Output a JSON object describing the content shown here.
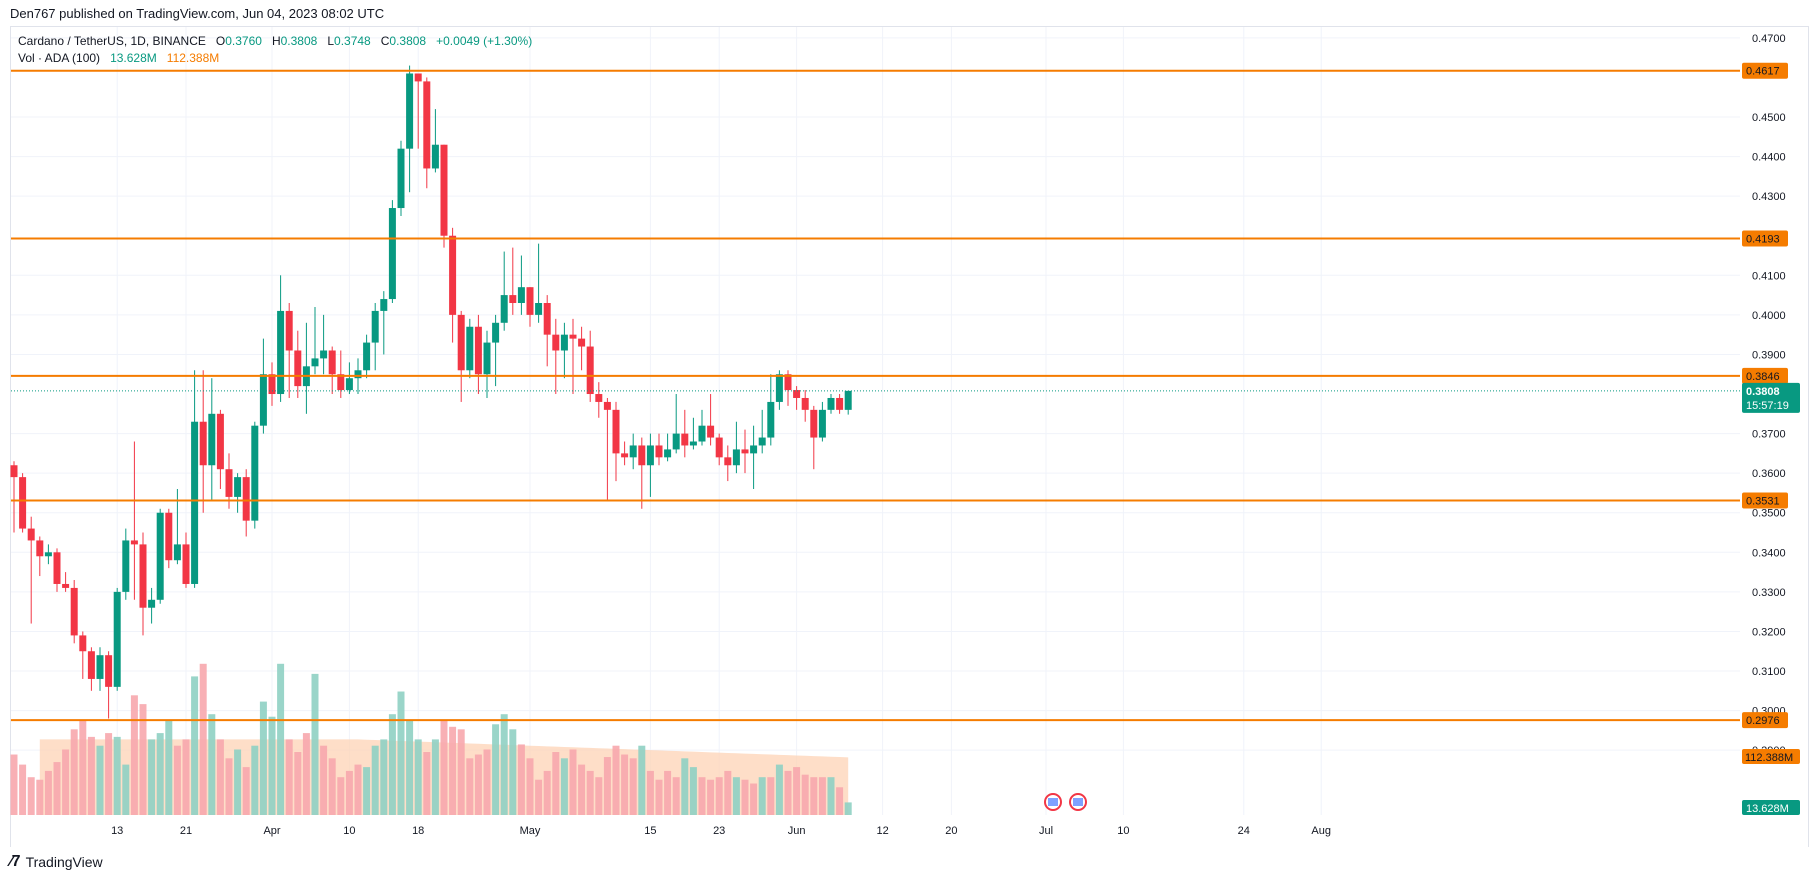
{
  "header": {
    "published": "Den767 published on TradingView.com, Jun 04, 2023 08:02 UTC"
  },
  "legend": {
    "symbol": "Cardano / TetherUS, 1D, BINANCE",
    "o_label": "O",
    "o": "0.3760",
    "h_label": "H",
    "h": "0.3808",
    "l_label": "L",
    "l": "0.3748",
    "c_label": "C",
    "c": "0.3808",
    "change": "+0.0049 (+1.30%)",
    "vol_label": "Vol · ADA (100)",
    "vol_value": "13.628M",
    "vol_ma": "112.388M"
  },
  "footer": {
    "brand": "TradingView"
  },
  "colors": {
    "up": "#089981",
    "down": "#f23645",
    "level": "#f57c00",
    "up_vol": "#8fd0c3",
    "down_vol": "#f7a7ad",
    "ma_fill": "#fdd3b5"
  },
  "chart_data": {
    "type": "candlestick",
    "price_axis": {
      "min": 0.286,
      "max": 0.473,
      "ticks": [
        "0.4700",
        "0.4500",
        "0.4400",
        "0.4300",
        "0.4100",
        "0.4000",
        "0.3900",
        "0.3700",
        "0.3600",
        "0.3500",
        "0.3400",
        "0.3300",
        "0.3200",
        "0.3100",
        "0.3000",
        "0.2900"
      ]
    },
    "time_axis": {
      "labels": [
        "13",
        "21",
        "Apr",
        "10",
        "18",
        "May",
        "15",
        "23",
        "Jun",
        "12",
        "20",
        "Jul",
        "10",
        "24",
        "Aug"
      ],
      "label_index": [
        12,
        20,
        30,
        39,
        47,
        60,
        74,
        82,
        91,
        101,
        109,
        120,
        129,
        143,
        152
      ],
      "total_slots": 160
    },
    "levels": [
      {
        "value": 0.4617,
        "label": "0.4617"
      },
      {
        "value": 0.4193,
        "label": "0.4193"
      },
      {
        "value": 0.3846,
        "label": "0.3846"
      },
      {
        "value": 0.3531,
        "label": "0.3531"
      },
      {
        "value": 0.2976,
        "label": "0.2976"
      }
    ],
    "last_price": {
      "value": 0.3808,
      "label": "0.3808",
      "countdown": "15:57:19"
    },
    "volume_ma_label": "112.388M",
    "volume_last_label": "13.628M",
    "candles": [
      [
        0.362,
        0.359,
        0.363,
        0.345
      ],
      [
        0.359,
        0.346,
        0.36,
        0.345
      ],
      [
        0.346,
        0.343,
        0.349,
        0.322
      ],
      [
        0.343,
        0.339,
        0.344,
        0.334
      ],
      [
        0.339,
        0.34,
        0.342,
        0.337
      ],
      [
        0.34,
        0.332,
        0.341,
        0.33
      ],
      [
        0.332,
        0.331,
        0.335,
        0.33
      ],
      [
        0.331,
        0.319,
        0.333,
        0.317
      ],
      [
        0.319,
        0.315,
        0.32,
        0.308
      ],
      [
        0.315,
        0.308,
        0.316,
        0.305
      ],
      [
        0.308,
        0.314,
        0.316,
        0.305
      ],
      [
        0.314,
        0.306,
        0.315,
        0.298
      ],
      [
        0.306,
        0.33,
        0.331,
        0.305
      ],
      [
        0.33,
        0.343,
        0.346,
        0.328
      ],
      [
        0.343,
        0.342,
        0.368,
        0.328
      ],
      [
        0.342,
        0.326,
        0.345,
        0.319
      ],
      [
        0.326,
        0.328,
        0.331,
        0.322
      ],
      [
        0.328,
        0.35,
        0.351,
        0.327
      ],
      [
        0.35,
        0.338,
        0.351,
        0.336
      ],
      [
        0.338,
        0.342,
        0.356,
        0.337
      ],
      [
        0.342,
        0.332,
        0.345,
        0.331
      ],
      [
        0.332,
        0.373,
        0.386,
        0.331
      ],
      [
        0.373,
        0.362,
        0.386,
        0.35
      ],
      [
        0.362,
        0.375,
        0.384,
        0.353
      ],
      [
        0.375,
        0.361,
        0.376,
        0.356
      ],
      [
        0.361,
        0.354,
        0.365,
        0.351
      ],
      [
        0.354,
        0.359,
        0.36,
        0.35
      ],
      [
        0.359,
        0.348,
        0.361,
        0.344
      ],
      [
        0.348,
        0.372,
        0.373,
        0.346
      ],
      [
        0.372,
        0.385,
        0.394,
        0.37
      ],
      [
        0.385,
        0.38,
        0.388,
        0.377
      ],
      [
        0.38,
        0.401,
        0.41,
        0.378
      ],
      [
        0.401,
        0.391,
        0.403,
        0.379
      ],
      [
        0.391,
        0.382,
        0.396,
        0.379
      ],
      [
        0.382,
        0.387,
        0.398,
        0.375
      ],
      [
        0.387,
        0.389,
        0.402,
        0.385
      ],
      [
        0.389,
        0.391,
        0.4,
        0.385
      ],
      [
        0.391,
        0.385,
        0.392,
        0.38
      ],
      [
        0.385,
        0.381,
        0.391,
        0.379
      ],
      [
        0.381,
        0.384,
        0.388,
        0.38
      ],
      [
        0.384,
        0.386,
        0.389,
        0.38
      ],
      [
        0.386,
        0.393,
        0.395,
        0.384
      ],
      [
        0.393,
        0.401,
        0.403,
        0.386
      ],
      [
        0.401,
        0.404,
        0.406,
        0.39
      ],
      [
        0.404,
        0.427,
        0.429,
        0.403
      ],
      [
        0.427,
        0.442,
        0.444,
        0.425
      ],
      [
        0.442,
        0.461,
        0.463,
        0.431
      ],
      [
        0.461,
        0.459,
        0.46,
        0.442
      ],
      [
        0.459,
        0.437,
        0.46,
        0.432
      ],
      [
        0.437,
        0.443,
        0.452,
        0.436
      ],
      [
        0.443,
        0.42,
        0.443,
        0.417
      ],
      [
        0.42,
        0.4,
        0.422,
        0.393
      ],
      [
        0.4,
        0.386,
        0.401,
        0.378
      ],
      [
        0.386,
        0.397,
        0.399,
        0.384
      ],
      [
        0.397,
        0.385,
        0.4,
        0.38
      ],
      [
        0.385,
        0.393,
        0.396,
        0.379
      ],
      [
        0.393,
        0.398,
        0.4,
        0.382
      ],
      [
        0.398,
        0.405,
        0.416,
        0.396
      ],
      [
        0.405,
        0.403,
        0.417,
        0.4
      ],
      [
        0.403,
        0.407,
        0.415,
        0.4
      ],
      [
        0.407,
        0.4,
        0.407,
        0.397
      ],
      [
        0.4,
        0.403,
        0.418,
        0.398
      ],
      [
        0.403,
        0.395,
        0.405,
        0.387
      ],
      [
        0.395,
        0.391,
        0.399,
        0.38
      ],
      [
        0.391,
        0.395,
        0.398,
        0.384
      ],
      [
        0.395,
        0.394,
        0.399,
        0.38
      ],
      [
        0.394,
        0.392,
        0.397,
        0.386
      ],
      [
        0.392,
        0.38,
        0.396,
        0.378
      ],
      [
        0.38,
        0.378,
        0.383,
        0.374
      ],
      [
        0.378,
        0.376,
        0.379,
        0.353
      ],
      [
        0.376,
        0.365,
        0.378,
        0.358
      ],
      [
        0.365,
        0.364,
        0.368,
        0.362
      ],
      [
        0.364,
        0.367,
        0.37,
        0.361
      ],
      [
        0.367,
        0.362,
        0.369,
        0.351
      ],
      [
        0.362,
        0.367,
        0.37,
        0.354
      ],
      [
        0.367,
        0.364,
        0.37,
        0.362
      ],
      [
        0.364,
        0.366,
        0.37,
        0.363
      ],
      [
        0.366,
        0.37,
        0.38,
        0.365
      ],
      [
        0.37,
        0.367,
        0.376,
        0.364
      ],
      [
        0.367,
        0.368,
        0.374,
        0.366
      ],
      [
        0.368,
        0.372,
        0.376,
        0.367
      ],
      [
        0.372,
        0.369,
        0.38,
        0.367
      ],
      [
        0.369,
        0.364,
        0.37,
        0.362
      ],
      [
        0.364,
        0.362,
        0.367,
        0.358
      ],
      [
        0.362,
        0.366,
        0.373,
        0.36
      ],
      [
        0.366,
        0.365,
        0.371,
        0.36
      ],
      [
        0.365,
        0.367,
        0.372,
        0.356
      ],
      [
        0.367,
        0.369,
        0.376,
        0.365
      ],
      [
        0.369,
        0.378,
        0.385,
        0.367
      ],
      [
        0.378,
        0.385,
        0.386,
        0.376
      ],
      [
        0.385,
        0.381,
        0.386,
        0.377
      ],
      [
        0.381,
        0.379,
        0.382,
        0.376
      ],
      [
        0.379,
        0.376,
        0.381,
        0.373
      ],
      [
        0.376,
        0.369,
        0.377,
        0.361
      ],
      [
        0.369,
        0.376,
        0.378,
        0.368
      ],
      [
        0.376,
        0.379,
        0.38,
        0.375
      ],
      [
        0.379,
        0.376,
        0.38,
        0.375
      ],
      [
        0.376,
        0.3808,
        0.3808,
        0.3748
      ]
    ],
    "volumes": [
      [
        48,
        1
      ],
      [
        40,
        1
      ],
      [
        30,
        1
      ],
      [
        28,
        1
      ],
      [
        35,
        1
      ],
      [
        42,
        1
      ],
      [
        52,
        1
      ],
      [
        68,
        1
      ],
      [
        75,
        1
      ],
      [
        62,
        1
      ],
      [
        55,
        0
      ],
      [
        65,
        1
      ],
      [
        62,
        0
      ],
      [
        40,
        0
      ],
      [
        95,
        1
      ],
      [
        88,
        1
      ],
      [
        60,
        0
      ],
      [
        65,
        0
      ],
      [
        75,
        0
      ],
      [
        55,
        1
      ],
      [
        60,
        1
      ],
      [
        110,
        0
      ],
      [
        120,
        1
      ],
      [
        80,
        0
      ],
      [
        60,
        1
      ],
      [
        45,
        1
      ],
      [
        52,
        0
      ],
      [
        38,
        1
      ],
      [
        55,
        0
      ],
      [
        90,
        0
      ],
      [
        78,
        0
      ],
      [
        120,
        0
      ],
      [
        60,
        1
      ],
      [
        50,
        1
      ],
      [
        65,
        1
      ],
      [
        112,
        0
      ],
      [
        55,
        1
      ],
      [
        45,
        1
      ],
      [
        30,
        1
      ],
      [
        35,
        1
      ],
      [
        40,
        1
      ],
      [
        38,
        0
      ],
      [
        55,
        0
      ],
      [
        60,
        0
      ],
      [
        80,
        0
      ],
      [
        98,
        0
      ],
      [
        75,
        0
      ],
      [
        60,
        0
      ],
      [
        50,
        1
      ],
      [
        60,
        0
      ],
      [
        75,
        1
      ],
      [
        70,
        1
      ],
      [
        68,
        1
      ],
      [
        45,
        1
      ],
      [
        48,
        1
      ],
      [
        52,
        1
      ],
      [
        72,
        0
      ],
      [
        80,
        0
      ],
      [
        68,
        0
      ],
      [
        56,
        1
      ],
      [
        45,
        1
      ],
      [
        28,
        1
      ],
      [
        35,
        1
      ],
      [
        50,
        1
      ],
      [
        45,
        0
      ],
      [
        52,
        1
      ],
      [
        40,
        1
      ],
      [
        35,
        1
      ],
      [
        30,
        1
      ],
      [
        46,
        1
      ],
      [
        55,
        1
      ],
      [
        48,
        1
      ],
      [
        45,
        1
      ],
      [
        55,
        0
      ],
      [
        35,
        1
      ],
      [
        28,
        1
      ],
      [
        35,
        1
      ],
      [
        30,
        1
      ],
      [
        45,
        0
      ],
      [
        38,
        0
      ],
      [
        30,
        1
      ],
      [
        28,
        1
      ],
      [
        30,
        1
      ],
      [
        35,
        1
      ],
      [
        30,
        0
      ],
      [
        28,
        1
      ],
      [
        25,
        1
      ],
      [
        30,
        0
      ],
      [
        30,
        1
      ],
      [
        40,
        0
      ],
      [
        35,
        1
      ],
      [
        38,
        1
      ],
      [
        32,
        1
      ],
      [
        30,
        1
      ],
      [
        30,
        1
      ],
      [
        30,
        0
      ],
      [
        22,
        1
      ],
      [
        10,
        0
      ]
    ]
  }
}
